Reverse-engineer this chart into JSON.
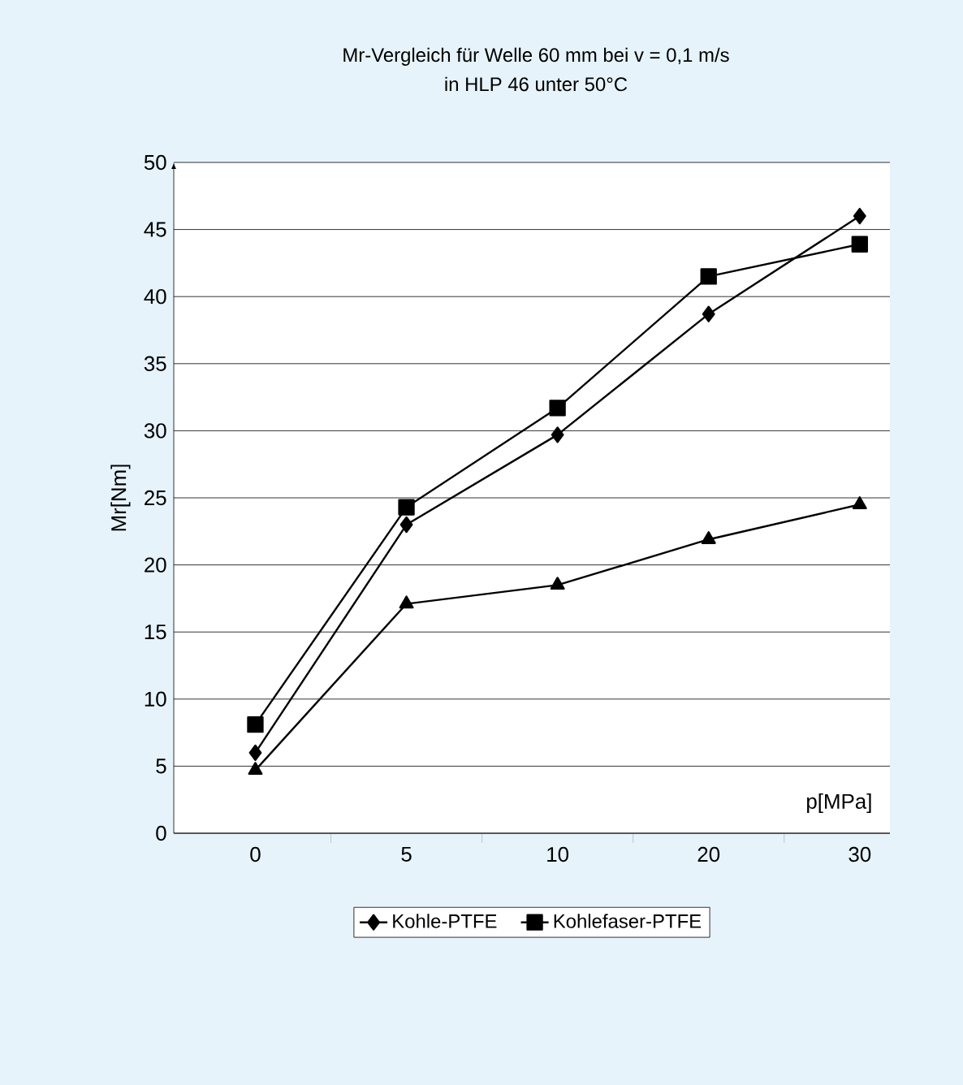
{
  "chart_data": {
    "type": "line",
    "title": "Mr-Vergleich für Welle 60 mm bei v = 0,1 m/s",
    "subtitle": "in HLP 46 unter 50°C",
    "xlabel": "p[MPa]",
    "ylabel": "Mr[Nm]",
    "categories": [
      "0",
      "5",
      "10",
      "20",
      "30"
    ],
    "series": [
      {
        "name": "Kohle-PTFE",
        "color": "#000000",
        "marker": "diamond",
        "values": [
          6,
          23,
          29.7,
          38.7,
          46
        ]
      },
      {
        "name": "Kohlefaser-PTFE",
        "color": "#000000",
        "marker": "square",
        "values": [
          8.1,
          24.3,
          31.7,
          41.5,
          43.9
        ]
      },
      {
        "color": "#000000",
        "marker": "triangle",
        "values": [
          4.7,
          17.1,
          18.5,
          21.9,
          24.5
        ]
      }
    ],
    "ylim": [
      0,
      50
    ],
    "yticks": [
      0,
      5,
      10,
      15,
      20,
      25,
      30,
      35,
      40,
      45,
      50
    ],
    "grid": "y",
    "legend": "bottom",
    "line_style": "solid"
  }
}
